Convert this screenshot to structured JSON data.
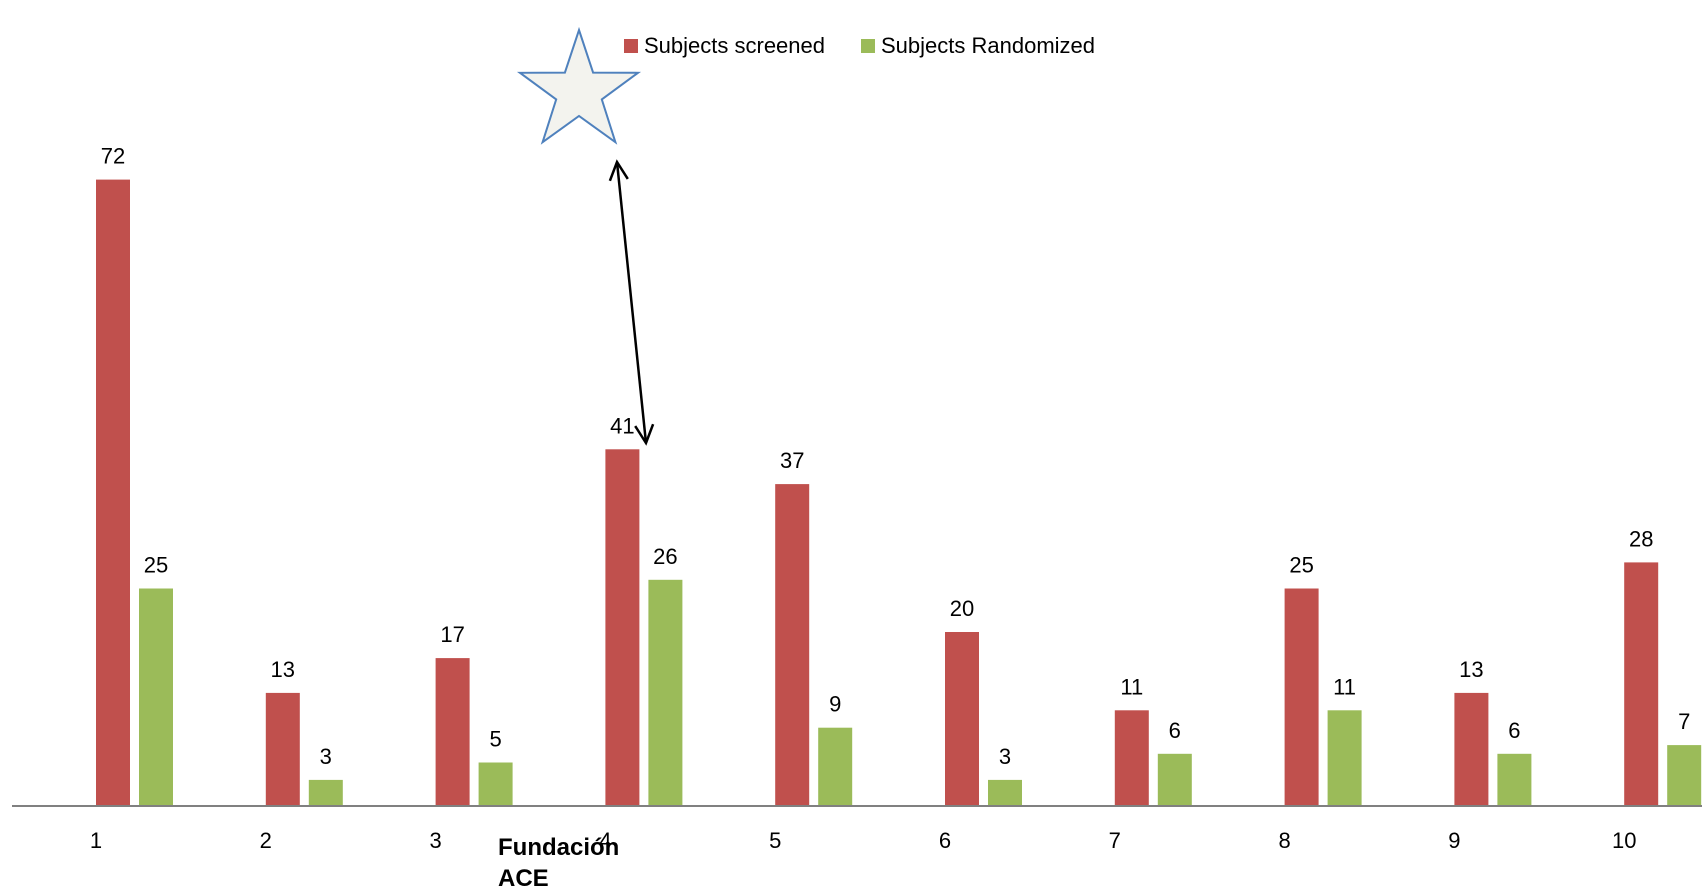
{
  "title": "",
  "annotation_lines": [
    "Fundación",
    "ACE"
  ],
  "colors": {
    "screened": "#C0504D",
    "randomized": "#9BBB59",
    "axis": "#808080",
    "star_stroke": "#4F81BD",
    "star_fill": "#F3F3EE"
  },
  "legend": [
    {
      "label": "Subjects screened",
      "color": "#C0504D"
    },
    {
      "label": "Subjects Randomized",
      "color": "#9BBB59"
    }
  ],
  "chart_data": {
    "type": "bar",
    "categories": [
      "1",
      "2",
      "3",
      "4",
      "5",
      "6",
      "7",
      "8",
      "9",
      "10"
    ],
    "series": [
      {
        "name": "Subjects screened",
        "values": [
          72,
          13,
          17,
          41,
          37,
          20,
          11,
          25,
          13,
          28
        ]
      },
      {
        "name": "Subjects Randomized",
        "values": [
          25,
          3,
          5,
          26,
          9,
          3,
          6,
          11,
          6,
          7
        ]
      }
    ],
    "ylim": [
      0,
      80
    ],
    "grid": false,
    "legend_position": "top",
    "highlight_category": "4"
  }
}
